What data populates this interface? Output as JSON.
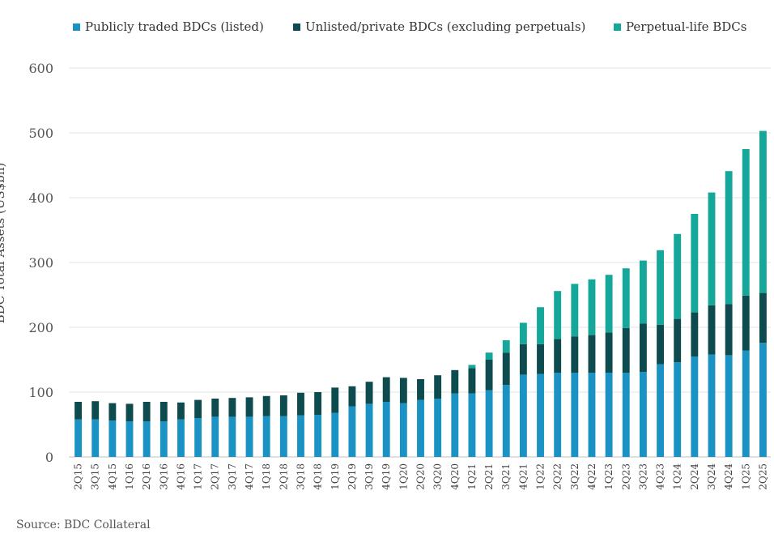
{
  "chart_data": {
    "type": "bar",
    "stacked": true,
    "title": "",
    "xlabel": "",
    "ylabel": "BDC Total Assets (US$bn)",
    "ylim": [
      0,
      600
    ],
    "yticks": [
      0,
      100,
      200,
      300,
      400,
      500,
      600
    ],
    "grid": true,
    "legend_position": "top",
    "categories": [
      "2Q15",
      "3Q15",
      "4Q15",
      "1Q16",
      "2Q16",
      "3Q16",
      "4Q16",
      "1Q17",
      "2Q17",
      "3Q17",
      "4Q17",
      "1Q18",
      "2Q18",
      "3Q18",
      "4Q18",
      "1Q19",
      "2Q19",
      "3Q19",
      "4Q19",
      "1Q20",
      "2Q20",
      "3Q20",
      "4Q20",
      "1Q21",
      "2Q21",
      "3Q21",
      "4Q21",
      "1Q22",
      "2Q22",
      "3Q22",
      "4Q22",
      "1Q23",
      "2Q23",
      "3Q23",
      "4Q23",
      "1Q24",
      "2Q24",
      "3Q24",
      "4Q24",
      "1Q25",
      "2Q25"
    ],
    "series": [
      {
        "name": "Publicly traded BDCs (listed)",
        "color": "#1a93c4",
        "values": [
          58,
          58,
          56,
          55,
          55,
          55,
          58,
          60,
          62,
          62,
          62,
          63,
          63,
          64,
          65,
          68,
          78,
          82,
          85,
          83,
          88,
          90,
          98,
          98,
          103,
          111,
          127,
          128,
          130,
          130,
          130,
          130,
          130,
          131,
          143,
          146,
          155,
          158,
          157,
          164,
          176
        ]
      },
      {
        "name": "Unlisted/private BDCs (excluding perpetuals)",
        "color": "#0e4b4e",
        "values": [
          27,
          28,
          27,
          27,
          30,
          30,
          26,
          28,
          28,
          29,
          30,
          31,
          32,
          35,
          35,
          39,
          31,
          34,
          38,
          39,
          32,
          36,
          36,
          39,
          47,
          50,
          47,
          46,
          52,
          56,
          58,
          62,
          69,
          75,
          61,
          67,
          68,
          76,
          79,
          85,
          77
        ]
      },
      {
        "name": "Perpetual-life BDCs",
        "color": "#15a89a",
        "values": [
          0,
          0,
          0,
          0,
          0,
          0,
          0,
          0,
          0,
          0,
          0,
          0,
          0,
          0,
          0,
          0,
          0,
          0,
          0,
          0,
          0,
          0,
          0,
          5,
          11,
          19,
          33,
          57,
          74,
          81,
          86,
          89,
          92,
          97,
          115,
          131,
          152,
          174,
          205,
          226,
          250
        ]
      }
    ]
  },
  "legend": [
    {
      "label": "Publicly traded BDCs (listed)",
      "color": "#1a93c4"
    },
    {
      "label": "Unlisted/private BDCs (excluding perpetuals)",
      "color": "#0e4b4e"
    },
    {
      "label": "Perpetual-life BDCs",
      "color": "#15a89a"
    }
  ],
  "source": "Source: BDC Collateral"
}
